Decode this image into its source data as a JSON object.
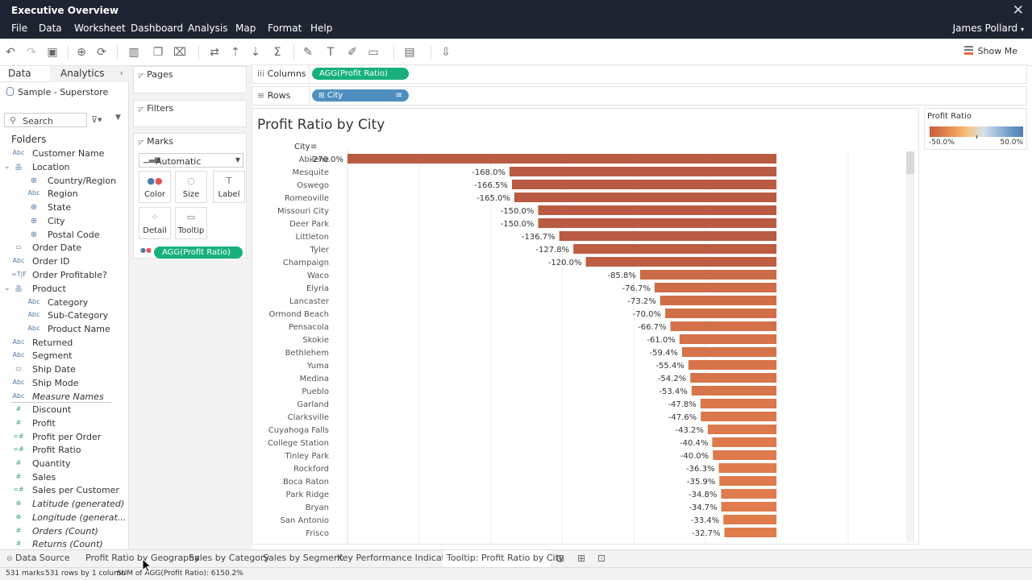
{
  "window": {
    "title": "Executive Overview"
  },
  "menu": [
    "File",
    "Data",
    "Worksheet",
    "Dashboard",
    "Analysis",
    "Map",
    "Format",
    "Help"
  ],
  "user": "James Pollard",
  "toolbar": {
    "show_me_label": "Show Me"
  },
  "data_pane": {
    "tabs": [
      "Data",
      "Analytics"
    ],
    "data_source": "Sample - Superstore",
    "search_placeholder": "Search",
    "folders_heading": "Folders",
    "fields": [
      {
        "label": "Customer Name",
        "type": "Abc",
        "indent": 0
      },
      {
        "label": "Location",
        "type": "hierarchy",
        "indent": 0,
        "expanded": true
      },
      {
        "label": "Country/Region",
        "type": "geo",
        "indent": 1
      },
      {
        "label": "Region",
        "type": "Abc",
        "indent": 1
      },
      {
        "label": "State",
        "type": "geo",
        "indent": 1
      },
      {
        "label": "City",
        "type": "geo",
        "indent": 1
      },
      {
        "label": "Postal Code",
        "type": "geo",
        "indent": 1
      },
      {
        "label": "Order Date",
        "type": "date",
        "indent": 0
      },
      {
        "label": "Order ID",
        "type": "Abc",
        "indent": 0
      },
      {
        "label": "Order Profitable?",
        "type": "calc-bool",
        "indent": 0
      },
      {
        "label": "Product",
        "type": "hierarchy",
        "indent": 0,
        "expanded": true
      },
      {
        "label": "Category",
        "type": "Abc",
        "indent": 1
      },
      {
        "label": "Sub-Category",
        "type": "Abc",
        "indent": 1
      },
      {
        "label": "Product Name",
        "type": "Abc",
        "indent": 1
      },
      {
        "label": "Returned",
        "type": "Abc",
        "indent": 0
      },
      {
        "label": "Segment",
        "type": "Abc",
        "indent": 0
      },
      {
        "label": "Ship Date",
        "type": "date",
        "indent": 0
      },
      {
        "label": "Ship Mode",
        "type": "Abc",
        "indent": 0
      },
      {
        "label": "Measure Names",
        "type": "Abc",
        "indent": 0,
        "italic": true
      },
      {
        "label": "Discount",
        "type": "measure",
        "indent": 0
      },
      {
        "label": "Profit",
        "type": "measure",
        "indent": 0
      },
      {
        "label": "Profit per Order",
        "type": "calc-measure",
        "indent": 0
      },
      {
        "label": "Profit Ratio",
        "type": "calc-measure",
        "indent": 0
      },
      {
        "label": "Quantity",
        "type": "measure",
        "indent": 0
      },
      {
        "label": "Sales",
        "type": "measure",
        "indent": 0
      },
      {
        "label": "Sales per Customer",
        "type": "calc-measure",
        "indent": 0
      },
      {
        "label": "Latitude (generated)",
        "type": "geo-measure",
        "indent": 0,
        "italic": true
      },
      {
        "label": "Longitude (generat...",
        "type": "geo-measure",
        "indent": 0,
        "italic": true
      },
      {
        "label": "Orders (Count)",
        "type": "measure",
        "indent": 0,
        "italic": true
      },
      {
        "label": "Returns (Count)",
        "type": "measure",
        "indent": 0,
        "italic": true
      }
    ]
  },
  "cards": {
    "pages_label": "Pages",
    "filters_label": "Filters",
    "marks_label": "Marks",
    "mark_type": "Automatic",
    "mark_buttons": [
      "Color",
      "Size",
      "Label",
      "Detail",
      "Tooltip"
    ],
    "color_pill": "AGG(Profit Ratio)"
  },
  "shelves": {
    "columns_label": "Columns",
    "columns_pill": "AGG(Profit Ratio)",
    "rows_label": "Rows",
    "rows_pill": "City"
  },
  "legend": {
    "title": "Profit Ratio",
    "min_label": "-50.0%",
    "max_label": "50.0%"
  },
  "viz": {
    "title": "Profit Ratio by City",
    "row_header": "City"
  },
  "chart_data": {
    "type": "bar",
    "orientation": "horizontal",
    "title": "Profit Ratio by City",
    "row_header": "City",
    "categories": [
      "Abilene",
      "Mesquite",
      "Oswego",
      "Romeoville",
      "Missouri City",
      "Deer Park",
      "Littleton",
      "Tyler",
      "Champaign",
      "Waco",
      "Elyria",
      "Lancaster",
      "Ormond Beach",
      "Pensacola",
      "Skokie",
      "Bethlehem",
      "Yuma",
      "Medina",
      "Pueblo",
      "Garland",
      "Clarksville",
      "Cuyahoga Falls",
      "College Station",
      "Tinley Park",
      "Rockford",
      "Boca Raton",
      "Park Ridge",
      "Bryan",
      "San Antonio",
      "Frisco"
    ],
    "values": [
      -270.0,
      -168.0,
      -166.5,
      -165.0,
      -150.0,
      -150.0,
      -136.7,
      -127.8,
      -120.0,
      -85.8,
      -76.7,
      -73.2,
      -70.0,
      -66.7,
      -61.0,
      -59.4,
      -55.4,
      -54.2,
      -53.4,
      -47.8,
      -47.6,
      -43.2,
      -40.4,
      -40.0,
      -36.3,
      -35.9,
      -34.8,
      -34.7,
      -33.4,
      -32.7
    ],
    "value_labels": [
      "-270.0%",
      "-168.0%",
      "-166.5%",
      "-165.0%",
      "-150.0%",
      "-150.0%",
      "-136.7%",
      "-127.8%",
      "-120.0%",
      "-85.8%",
      "-76.7%",
      "-73.2%",
      "-70.0%",
      "-66.7%",
      "-61.0%",
      "-59.4%",
      "-55.4%",
      "-54.2%",
      "-53.4%",
      "-47.8%",
      "-47.6%",
      "-43.2%",
      "-40.4%",
      "-40.0%",
      "-36.3%",
      "-35.9%",
      "-34.8%",
      "-34.7%",
      "-33.4%",
      "-32.7%"
    ],
    "unit": "%",
    "color_by": "Profit Ratio",
    "colors": {
      "strong_negative": "#b95b43",
      "mild_negative": "#e07a4a"
    }
  },
  "sheet_tabs": {
    "data_source_label": "Data Source",
    "tabs": [
      "Profit Ratio by Geography",
      "Sales by Category",
      "Sales by Segment",
      "Key Performance Indicators",
      "Tooltip: Profit Ratio by City"
    ],
    "active_index": 4
  },
  "status": {
    "marks": "531 marks",
    "rows_cols": "531 rows by 1 column",
    "sum": "SUM of AGG(Profit Ratio): 6150.2%"
  }
}
